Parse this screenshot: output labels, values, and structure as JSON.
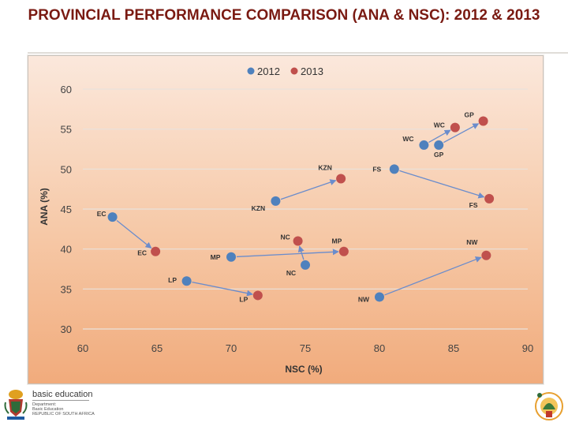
{
  "page": {
    "title": "PROVINCIAL PERFORMANCE COMPARISON (ANA & NSC): 2012 & 2013"
  },
  "chart_data": {
    "type": "scatter",
    "xlabel": "NSC (%)",
    "ylabel": "ANA (%)",
    "xlim": [
      60,
      90
    ],
    "ylim": [
      30,
      60
    ],
    "xticks": [
      60,
      65,
      70,
      75,
      80,
      85,
      90
    ],
    "yticks": [
      30,
      35,
      40,
      45,
      50,
      55,
      60
    ],
    "grid": "horizontal",
    "legend_position": "top-center",
    "series": [
      {
        "name": "2012",
        "color": "#4f81bd",
        "points": [
          {
            "label": "EC",
            "x": 62.0,
            "y": 44.0
          },
          {
            "label": "LP",
            "x": 67.0,
            "y": 36.0
          },
          {
            "label": "MP",
            "x": 70.0,
            "y": 39.0
          },
          {
            "label": "KZN",
            "x": 73.0,
            "y": 46.0
          },
          {
            "label": "NC",
            "x": 75.0,
            "y": 38.0
          },
          {
            "label": "NW",
            "x": 80.0,
            "y": 34.0
          },
          {
            "label": "FS",
            "x": 81.0,
            "y": 50.0
          },
          {
            "label": "WC",
            "x": 83.0,
            "y": 53.0
          },
          {
            "label": "GP",
            "x": 84.0,
            "y": 53.0
          }
        ]
      },
      {
        "name": "2013",
        "color": "#c0504d",
        "points": [
          {
            "label": "EC",
            "x": 64.9,
            "y": 39.7
          },
          {
            "label": "LP",
            "x": 71.8,
            "y": 34.2
          },
          {
            "label": "MP",
            "x": 77.6,
            "y": 39.7
          },
          {
            "label": "KZN",
            "x": 77.4,
            "y": 48.8
          },
          {
            "label": "NC",
            "x": 74.5,
            "y": 41.0
          },
          {
            "label": "NW",
            "x": 87.2,
            "y": 39.2
          },
          {
            "label": "FS",
            "x": 87.4,
            "y": 46.3
          },
          {
            "label": "WC",
            "x": 85.1,
            "y": 55.2
          },
          {
            "label": "GP",
            "x": 87.0,
            "y": 56.0
          }
        ]
      }
    ]
  },
  "footer": {
    "org": "basic education",
    "line1": "Department:",
    "line2": "Basic Education",
    "line3": "REPUBLIC OF SOUTH AFRICA",
    "colors": {
      "title": "#7a1a12",
      "series2012": "#4f81bd",
      "series2013": "#c0504d",
      "arrow": "#6a8ccc"
    }
  }
}
